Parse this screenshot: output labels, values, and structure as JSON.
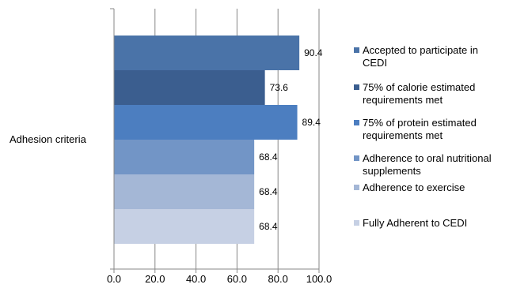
{
  "chart_data": {
    "type": "bar",
    "orientation": "horizontal",
    "categories": [
      "Adhesion criteria"
    ],
    "series": [
      {
        "name": "Accepted to participate in CEDI",
        "legend_lines": [
          "Accepted to participate in",
          "CEDI"
        ],
        "value": 90.4,
        "label": "90.4",
        "color": "#4a73a8"
      },
      {
        "name": "75% of calorie estimated requirements met",
        "legend_lines": [
          "75% of calorie estimated",
          "requirements met"
        ],
        "value": 73.6,
        "label": "73.6",
        "color": "#3b5e8f"
      },
      {
        "name": "75% of protein estimated requirements met",
        "legend_lines": [
          "75% of protein estimated",
          "requirements met"
        ],
        "value": 89.4,
        "label": "89.4",
        "color": "#4c7ec0"
      },
      {
        "name": "Adherence to oral nutritional supplements",
        "legend_lines": [
          "Adherence to oral nutritional",
          "supplements"
        ],
        "value": 68.4,
        "label": "68.4",
        "color": "#7295c6"
      },
      {
        "name": "Adherence to exercise",
        "legend_lines": [
          "Adherence to exercise"
        ],
        "value": 68.4,
        "label": "68.4",
        "color": "#a4b7d6"
      },
      {
        "name": "Fully Adherent to CEDI",
        "legend_lines": [
          "Fully Adherent to CEDI"
        ],
        "value": 68.4,
        "label": "68.4",
        "color": "#c6d0e4"
      }
    ],
    "xlim": [
      0,
      100
    ],
    "x_ticks": [
      0,
      20,
      40,
      60,
      80,
      100
    ],
    "x_tick_labels": [
      "0.0",
      "20.0",
      "40.0",
      "60.0",
      "80.0",
      "100.0"
    ],
    "grid": "vertical",
    "legend_position": "right"
  }
}
